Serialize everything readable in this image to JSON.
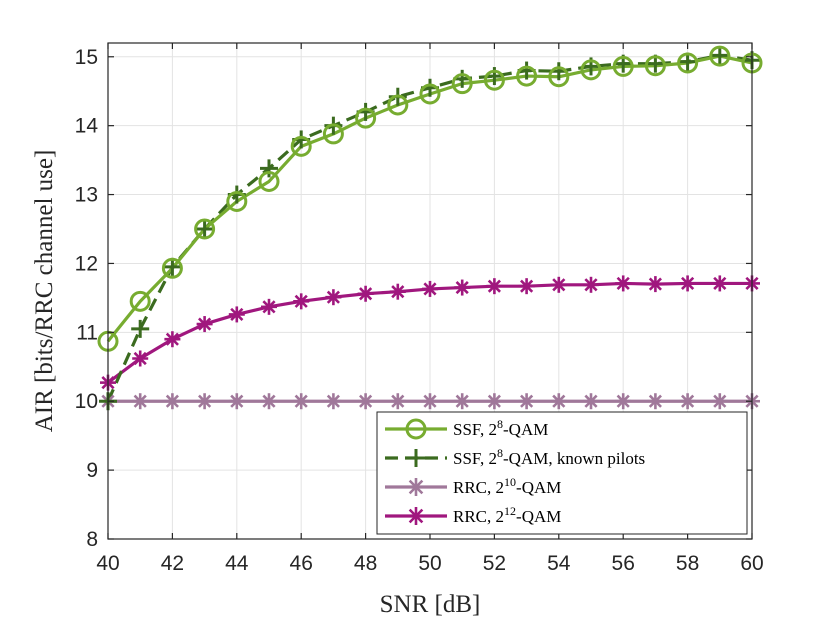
{
  "chart_data": {
    "type": "line",
    "xlabel": "SNR [dB]",
    "ylabel": "AIR [bits/RRC channel use]",
    "xlim": [
      40,
      60
    ],
    "ylim": [
      8,
      15.2
    ],
    "xticks": [
      40,
      42,
      44,
      46,
      48,
      50,
      52,
      54,
      56,
      58,
      60
    ],
    "yticks": [
      8,
      9,
      10,
      11,
      12,
      13,
      14,
      15
    ],
    "grid": true,
    "legend_position": "bottom-right",
    "x": [
      40,
      41,
      42,
      43,
      44,
      45,
      46,
      47,
      48,
      49,
      50,
      51,
      52,
      53,
      54,
      55,
      56,
      57,
      58,
      59,
      60
    ],
    "series": [
      {
        "name": "SSF, 2^8-QAM",
        "legend": {
          "pre": "SSF, 2",
          "sup": "8",
          "post": "-QAM"
        },
        "color": "#77AC30",
        "dash": "solid",
        "marker": "circle",
        "values": [
          10.87,
          11.45,
          11.93,
          12.5,
          12.9,
          13.19,
          13.7,
          13.88,
          14.11,
          14.3,
          14.46,
          14.61,
          14.66,
          14.72,
          14.71,
          14.81,
          14.86,
          14.87,
          14.91,
          15.01,
          14.91
        ]
      },
      {
        "name": "SSF, 2^8-QAM, known pilots",
        "legend": {
          "pre": "SSF, 2",
          "sup": "8",
          "post": "-QAM, known pilots"
        },
        "color": "#3B6B1F",
        "dash": "dashed",
        "marker": "plus",
        "values": [
          10.0,
          11.05,
          11.95,
          12.5,
          13.0,
          13.38,
          13.8,
          14.0,
          14.2,
          14.42,
          14.55,
          14.68,
          14.72,
          14.8,
          14.79,
          14.86,
          14.9,
          14.9,
          14.93,
          15.02,
          14.95
        ]
      },
      {
        "name": "RRC, 2^10-QAM",
        "legend": {
          "pre": "RRC, 2",
          "sup": "10",
          "post": "-QAM"
        },
        "color": "#A0789A",
        "dash": "solid",
        "marker": "asterisk",
        "values": [
          10.0,
          10.0,
          10.0,
          10.0,
          10.0,
          10.0,
          10.0,
          10.0,
          10.0,
          10.0,
          10.0,
          10.0,
          10.0,
          10.0,
          10.0,
          10.0,
          10.0,
          10.0,
          10.0,
          10.0,
          10.0
        ]
      },
      {
        "name": "RRC, 2^12-QAM",
        "legend": {
          "pre": "RRC, 2",
          "sup": "12",
          "post": "-QAM"
        },
        "color": "#A0177E",
        "dash": "solid",
        "marker": "asterisk",
        "values": [
          10.27,
          10.62,
          10.9,
          11.12,
          11.26,
          11.37,
          11.45,
          11.51,
          11.56,
          11.59,
          11.63,
          11.65,
          11.67,
          11.67,
          11.69,
          11.69,
          11.71,
          11.7,
          11.71,
          11.71,
          11.71
        ]
      }
    ]
  }
}
